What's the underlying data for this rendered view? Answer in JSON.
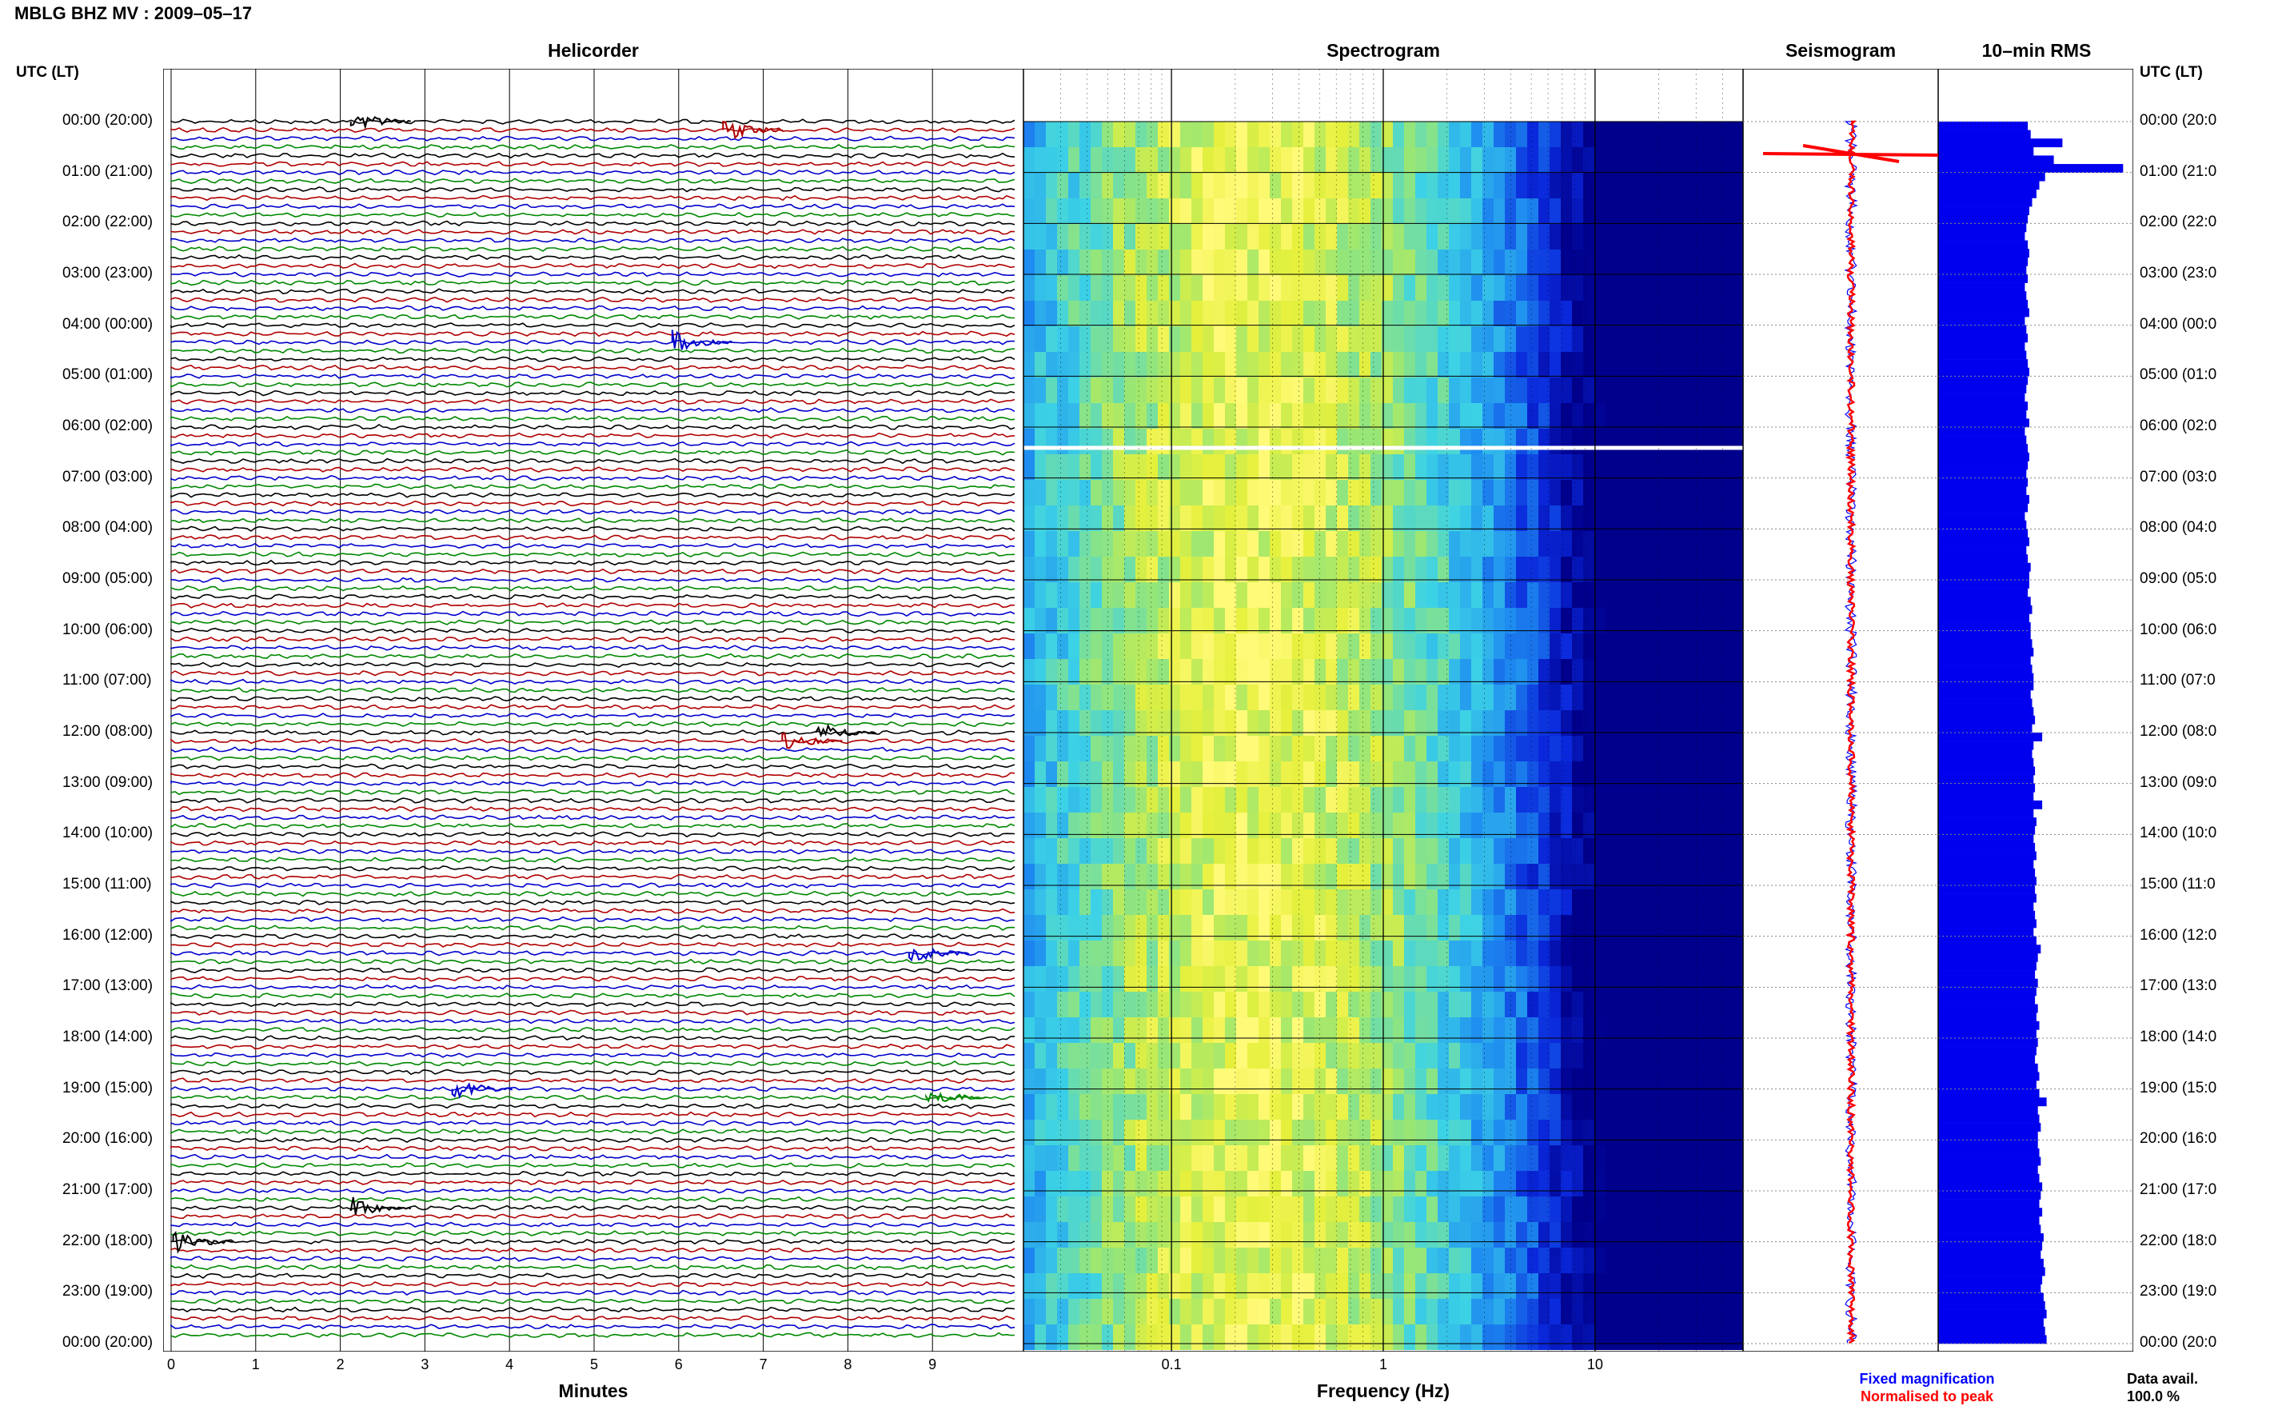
{
  "header": {
    "title": "MBLG BHZ MV : 2009–05–17"
  },
  "panels": {
    "helicorder_title": "Helicorder",
    "spectrogram_title": "Spectrogram",
    "seismogram_title": "Seismogram",
    "rms_title": "10–min RMS"
  },
  "row_axis": {
    "header": "UTC (LT)",
    "labels": [
      "00:00 (20:00)",
      "01:00 (21:00)",
      "02:00 (22:00)",
      "03:00 (23:00)",
      "04:00 (00:00)",
      "05:00 (01:00)",
      "06:00 (02:00)",
      "07:00 (03:00)",
      "08:00 (04:00)",
      "09:00 (05:00)",
      "10:00 (06:00)",
      "11:00 (07:00)",
      "12:00 (08:00)",
      "13:00 (09:00)",
      "14:00 (10:00)",
      "15:00 (11:00)",
      "16:00 (12:00)",
      "17:00 (13:00)",
      "18:00 (14:00)",
      "19:00 (15:00)",
      "20:00 (16:00)",
      "21:00 (17:00)",
      "22:00 (18:00)",
      "23:00 (19:00)",
      "00:00 (20:00)"
    ],
    "right_labels": [
      "00:00 (20:0",
      "01:00 (21:0",
      "02:00 (22:0",
      "03:00 (23:0",
      "04:00 (00:0",
      "05:00 (01:0",
      "06:00 (02:0",
      "07:00 (03:0",
      "08:00 (04:0",
      "09:00 (05:0",
      "10:00 (06:0",
      "11:00 (07:0",
      "12:00 (08:0",
      "13:00 (09:0",
      "14:00 (10:0",
      "15:00 (11:0",
      "16:00 (12:0",
      "17:00 (13:0",
      "18:00 (14:0",
      "19:00 (15:0",
      "20:00 (16:0",
      "21:00 (17:0",
      "22:00 (18:0",
      "23:00 (19:0",
      "00:00 (20:0"
    ]
  },
  "helicorder_axis": {
    "label": "Minutes",
    "ticks": [
      "0",
      "1",
      "2",
      "3",
      "4",
      "5",
      "6",
      "7",
      "8",
      "9"
    ]
  },
  "spectrogram_axis": {
    "label": "Frequency (Hz)",
    "ticks": [
      "0.1",
      "1",
      "10"
    ]
  },
  "legend": {
    "fixed": "Fixed magnification",
    "normalised": "Normalised to peak"
  },
  "availability": {
    "label": "Data avail.",
    "value": "100.0 %"
  },
  "colors": {
    "trace_cycle": [
      "#000000",
      "#b00000",
      "#0000cc",
      "#008800"
    ],
    "fixed_magnification": "#0000ff",
    "normalised_to_peak": "#ff0000",
    "rms_bar": "#0000ee"
  },
  "chart_data": [
    {
      "type": "line",
      "title": "Helicorder",
      "xlabel": "Minutes",
      "xlim": [
        0,
        10
      ],
      "rows_per_hour": 6,
      "hours": 24,
      "event_markers": [
        {
          "hour": 0,
          "minute": 2.2
        },
        {
          "hour": 0,
          "minute": 6.6
        },
        {
          "hour": 4,
          "minute": 6.0
        },
        {
          "hour": 12,
          "minute": 7.7
        },
        {
          "hour": 12,
          "minute": 7.3
        },
        {
          "hour": 16,
          "minute": 8.8
        },
        {
          "hour": 19,
          "minute": 3.4
        },
        {
          "hour": 19,
          "minute": 9.0
        },
        {
          "hour": 21,
          "minute": 2.2
        },
        {
          "hour": 22,
          "minute": 0.1
        }
      ]
    },
    {
      "type": "heatmap",
      "title": "Spectrogram",
      "xlabel": "Frequency (Hz)",
      "x_scale": "log",
      "xlim": [
        0.02,
        50
      ],
      "ylim_hours": [
        0,
        24
      ],
      "peak_frequency_hz": 0.25,
      "gap_hour": 6.4
    },
    {
      "type": "line",
      "title": "Seismogram",
      "series": [
        {
          "name": "Fixed magnification"
        },
        {
          "name": "Normalised to peak"
        }
      ]
    },
    {
      "type": "bar",
      "title": "10–min RMS",
      "orientation": "horizontal",
      "values": [
        0.62,
        0.64,
        0.86,
        0.66,
        0.8,
        1.28,
        0.74,
        0.7,
        0.68,
        0.65,
        0.63,
        0.62,
        0.61,
        0.6,
        0.62,
        0.63,
        0.62,
        0.61,
        0.62,
        0.6,
        0.61,
        0.62,
        0.63,
        0.6,
        0.61,
        0.62,
        0.6,
        0.61,
        0.62,
        0.63,
        0.62,
        0.61,
        0.6,
        0.62,
        0.61,
        0.63,
        0.6,
        0.61,
        0.62,
        0.63,
        0.62,
        0.61,
        0.62,
        0.61,
        0.63,
        0.62,
        0.6,
        0.61,
        0.62,
        0.63,
        0.61,
        0.62,
        0.64,
        0.63,
        0.63,
        0.62,
        0.64,
        0.65,
        0.63,
        0.64,
        0.64,
        0.65,
        0.66,
        0.64,
        0.65,
        0.66,
        0.66,
        0.64,
        0.65,
        0.66,
        0.67,
        0.65,
        0.72,
        0.66,
        0.65,
        0.66,
        0.67,
        0.66,
        0.67,
        0.66,
        0.72,
        0.66,
        0.68,
        0.67,
        0.66,
        0.67,
        0.68,
        0.66,
        0.67,
        0.68,
        0.67,
        0.68,
        0.66,
        0.67,
        0.68,
        0.66,
        0.68,
        0.71,
        0.69,
        0.68,
        0.67,
        0.69,
        0.68,
        0.67,
        0.69,
        0.68,
        0.7,
        0.68,
        0.69,
        0.68,
        0.67,
        0.69,
        0.7,
        0.68,
        0.7,
        0.75,
        0.69,
        0.7,
        0.71,
        0.69,
        0.69,
        0.7,
        0.71,
        0.69,
        0.7,
        0.72,
        0.71,
        0.7,
        0.72,
        0.7,
        0.71,
        0.73,
        0.72,
        0.71,
        0.73,
        0.74,
        0.72,
        0.71,
        0.73,
        0.74,
        0.75,
        0.73,
        0.74,
        0.75
      ]
    }
  ]
}
